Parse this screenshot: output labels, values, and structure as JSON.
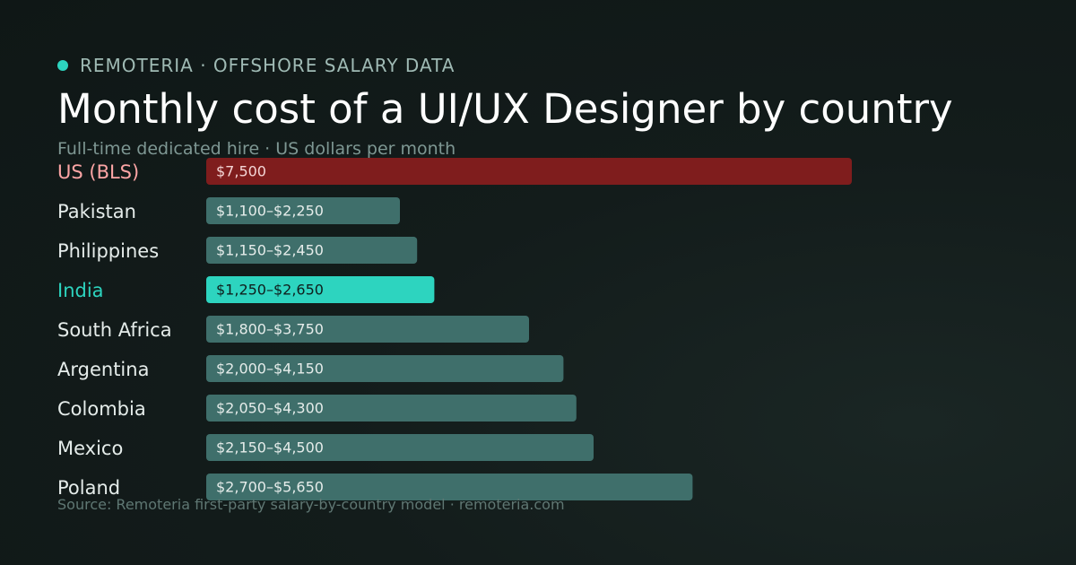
{
  "header": {
    "brand": "REMOTERIA · OFFSHORE SALARY DATA",
    "title": "Monthly cost of a UI/UX Designer by country",
    "subtitle": "Full-time dedicated hire · US dollars per month"
  },
  "footer": {
    "source": "Source: Remoteria first-party salary-by-country model · remoteria.com"
  },
  "colors": {
    "brand_dot": "#2dd4bf",
    "benchmark_bar": "#7f1d1d",
    "benchmark_label": "#fca5a5",
    "highlight_bar": "#2dd4bf",
    "highlight_label": "#2dd4bf",
    "default_bar": "#3f6f6b",
    "default_label": "#e5ecea"
  },
  "chart_data": {
    "type": "bar",
    "orientation": "horizontal",
    "title": "Monthly cost of a UI/UX Designer by country",
    "subtitle": "Full-time dedicated hire · US dollars per month",
    "unit": "US dollars per month",
    "xlim": [
      0,
      9000
    ],
    "grid": false,
    "legend": "none",
    "categories": [
      "US (BLS)",
      "Pakistan",
      "Philippines",
      "India",
      "South Africa",
      "Argentina",
      "Colombia",
      "Mexico",
      "Poland"
    ],
    "ranges": [
      {
        "category": "US (BLS)",
        "low": 7500,
        "high": 7500,
        "label": "$7,500",
        "style": "benchmark"
      },
      {
        "category": "Pakistan",
        "low": 1100,
        "high": 2250,
        "label": "$1,100–$2,250",
        "style": "default"
      },
      {
        "category": "Philippines",
        "low": 1150,
        "high": 2450,
        "label": "$1,150–$2,450",
        "style": "default"
      },
      {
        "category": "India",
        "low": 1250,
        "high": 2650,
        "label": "$1,250–$2,650",
        "style": "highlight"
      },
      {
        "category": "South Africa",
        "low": 1800,
        "high": 3750,
        "label": "$1,800–$3,750",
        "style": "default"
      },
      {
        "category": "Argentina",
        "low": 2000,
        "high": 4150,
        "label": "$2,000–$4,150",
        "style": "default"
      },
      {
        "category": "Colombia",
        "low": 2050,
        "high": 4300,
        "label": "$2,050–$4,300",
        "style": "default"
      },
      {
        "category": "Mexico",
        "low": 2150,
        "high": 4500,
        "label": "$2,150–$4,500",
        "style": "default"
      },
      {
        "category": "Poland",
        "low": 2700,
        "high": 5650,
        "label": "$2,700–$5,650",
        "style": "default"
      }
    ]
  }
}
